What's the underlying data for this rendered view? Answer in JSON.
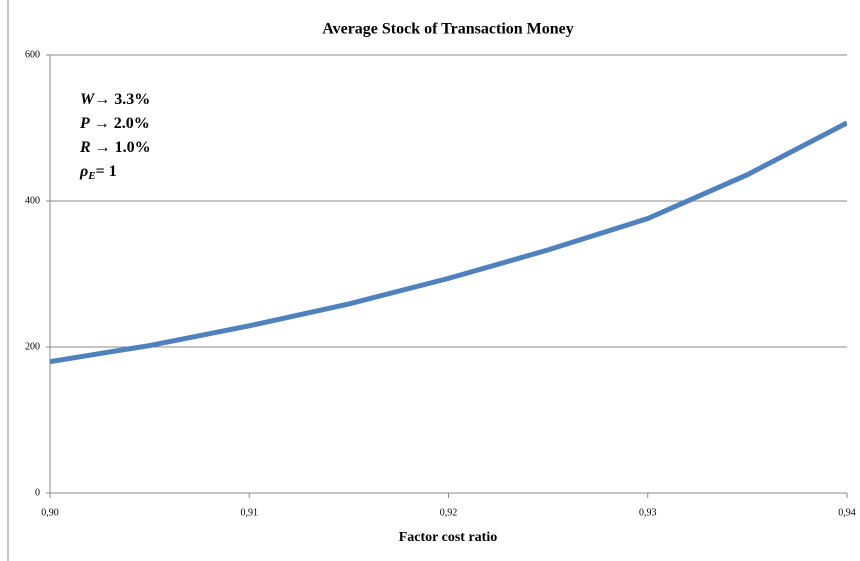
{
  "chart_data": {
    "type": "line",
    "title": "Average Stock of Transaction Money",
    "xlabel": "Factor cost ratio",
    "x": [
      0.9,
      0.905,
      0.91,
      0.915,
      0.92,
      0.925,
      0.93,
      0.935,
      0.94
    ],
    "values": [
      180,
      202,
      229,
      259,
      294,
      333,
      376,
      436,
      507
    ],
    "color": "#4f81bd",
    "xlim": [
      0.9,
      0.94
    ],
    "xticks": [
      {
        "value": 0.9,
        "label": "0,90"
      },
      {
        "value": 0.91,
        "label": "0,91"
      },
      {
        "value": 0.92,
        "label": "0,92"
      },
      {
        "value": 0.93,
        "label": "0,93"
      },
      {
        "value": 0.94,
        "label": "0,94"
      }
    ],
    "ylim": [
      0,
      600
    ],
    "yticks": [
      0,
      200,
      400,
      600
    ],
    "grid": true,
    "annotations": [
      {
        "symbol": "W",
        "text": "→ 3.3%"
      },
      {
        "symbol": "P",
        "text": " → 2.0%"
      },
      {
        "symbol": "R",
        "text": " → 1.0%"
      },
      {
        "symbol": "ρ",
        "sub": "E",
        "text": "= 1"
      }
    ]
  }
}
